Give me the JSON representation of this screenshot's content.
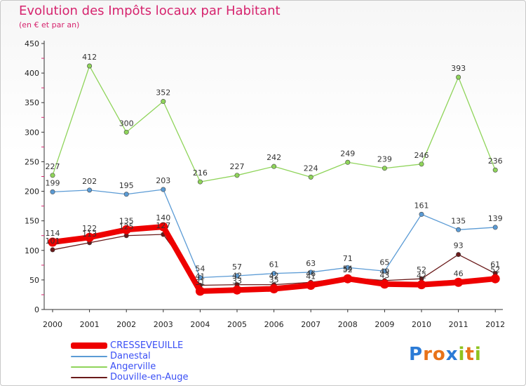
{
  "title": "Evolution des Impôts locaux par Habitant",
  "subtitle": "(en € et par an)",
  "logo": "Proxiti",
  "colors": {
    "title": "#d6246e",
    "axis": "#333333",
    "legend_text": "#3a4ff5"
  },
  "chart_data": {
    "type": "line",
    "x": [
      "2000",
      "2001",
      "2002",
      "2003",
      "2004",
      "2005",
      "2006",
      "2007",
      "2008",
      "2009",
      "2010",
      "2011",
      "2012"
    ],
    "ylim": [
      0,
      450
    ],
    "yticks": [
      0,
      50,
      100,
      150,
      200,
      250,
      300,
      350,
      400,
      450
    ],
    "grid": false,
    "legend_position": "bottom-left",
    "series": [
      {
        "name": "CRESSEVEUILLE",
        "color": "#ee0000",
        "values": [
          114,
          122,
          135,
          140,
          31,
          33,
          35,
          41,
          52,
          43,
          42,
          46,
          52
        ],
        "labels": [
          "114",
          "122",
          "135",
          "140",
          "31",
          "33",
          "35",
          "41",
          "52",
          "43",
          "42",
          "46",
          "52"
        ]
      },
      {
        "name": "Danestal",
        "color": "#5b9bd5",
        "values": [
          199,
          202,
          195,
          203,
          54,
          57,
          61,
          63,
          71,
          65,
          161,
          135,
          139
        ],
        "labels": [
          "199",
          "202",
          "195",
          "203",
          "54",
          "57",
          "61",
          "63",
          "71",
          "65",
          "161",
          "135",
          "139"
        ]
      },
      {
        "name": "Angerville",
        "color": "#8fd45a",
        "values": [
          227,
          412,
          300,
          352,
          216,
          227,
          242,
          224,
          249,
          239,
          246,
          393,
          236
        ],
        "labels": [
          "227",
          "412",
          "300",
          "352",
          "216",
          "227",
          "242",
          "224",
          "249",
          "239",
          "246",
          "393",
          "236"
        ]
      },
      {
        "name": "Douville-en-Auge",
        "color": "#6a1a1a",
        "values": [
          101,
          113,
          125,
          127,
          41,
          42,
          42,
          46,
          54,
          49,
          52,
          93,
          61
        ],
        "labels": [
          "101",
          "113",
          "125",
          "127",
          "41",
          "42",
          "42",
          "46",
          "54",
          "49",
          "52",
          "93",
          "61"
        ]
      }
    ]
  }
}
